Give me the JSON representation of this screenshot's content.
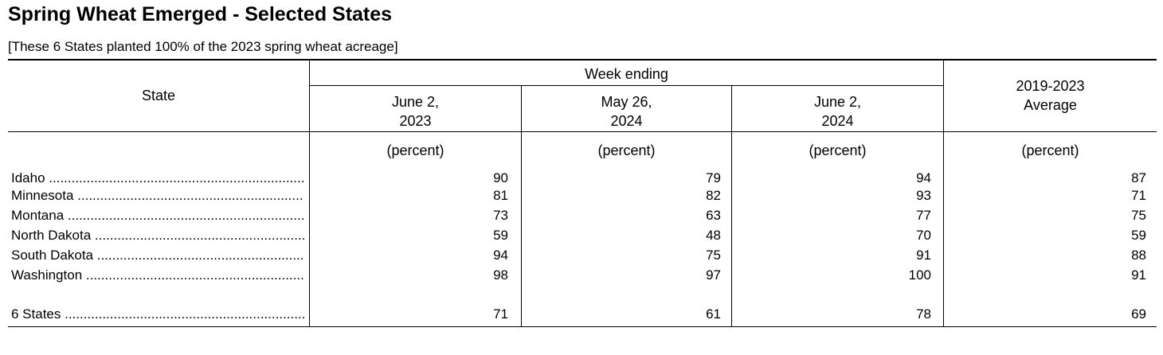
{
  "title": "Spring Wheat Emerged - Selected States",
  "subtitle": "[These 6 States planted 100% of the 2023 spring wheat acreage]",
  "header": {
    "state": "State",
    "week_ending": "Week ending",
    "col1_line1": "June 2,",
    "col1_line2": "2023",
    "col2_line1": "May 26,",
    "col2_line2": "2024",
    "col3_line1": "June 2,",
    "col3_line2": "2024",
    "col4_line1": "2019-2023",
    "col4_line2": "Average"
  },
  "units": [
    "(percent)",
    "(percent)",
    "(percent)",
    "(percent)"
  ],
  "rows": [
    {
      "state": "Idaho",
      "values": [
        "90",
        "79",
        "94",
        "87"
      ]
    },
    {
      "state": "Minnesota",
      "values": [
        "81",
        "82",
        "93",
        "71"
      ]
    },
    {
      "state": "Montana",
      "values": [
        "73",
        "63",
        "77",
        "75"
      ]
    },
    {
      "state": "North Dakota",
      "values": [
        "59",
        "48",
        "70",
        "59"
      ]
    },
    {
      "state": "South Dakota",
      "values": [
        "94",
        "75",
        "91",
        "88"
      ]
    },
    {
      "state": "Washington",
      "values": [
        "98",
        "97",
        "100",
        "91"
      ]
    }
  ],
  "total": {
    "state": "6 States",
    "values": [
      "71",
      "61",
      "78",
      "69"
    ]
  }
}
